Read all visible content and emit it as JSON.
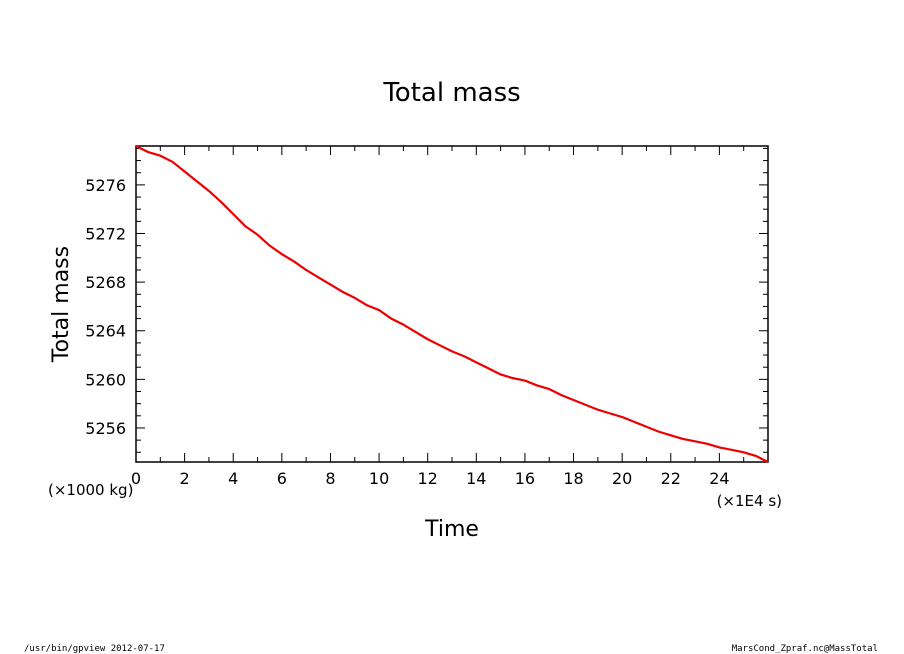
{
  "chart_data": {
    "type": "line",
    "title": "Total mass",
    "xlabel": "Time",
    "ylabel": "Total mass",
    "x_unit": "(×1E4 s)",
    "y_unit": "(×1000 kg)",
    "xlim": [
      0,
      26
    ],
    "ylim": [
      5253.2,
      5279.2
    ],
    "x_ticks": [
      0,
      2,
      4,
      6,
      8,
      10,
      12,
      14,
      16,
      18,
      20,
      22,
      24
    ],
    "y_ticks": [
      5256,
      5260,
      5264,
      5268,
      5272,
      5276
    ],
    "grid": false,
    "series": [
      {
        "color": "#ee0000",
        "x": [
          0,
          0.5,
          1,
          1.5,
          2,
          2.5,
          3,
          3.5,
          4,
          4.5,
          5,
          5.5,
          6,
          6.5,
          7,
          7.5,
          8,
          8.5,
          9,
          9.5,
          10,
          10.5,
          11,
          11.5,
          12,
          12.5,
          13,
          13.5,
          14,
          14.5,
          15,
          15.5,
          16,
          16.5,
          17,
          17.5,
          18,
          18.5,
          19,
          19.5,
          20,
          20.5,
          21,
          21.5,
          22,
          22.5,
          23,
          23.5,
          24,
          24.5,
          25,
          25.5,
          26
        ],
        "y": [
          5279.2,
          5278.7,
          5278.4,
          5277.9,
          5277.1,
          5276.3,
          5275.5,
          5274.6,
          5273.6,
          5272.6,
          5271.9,
          5271.0,
          5270.3,
          5269.7,
          5269.0,
          5268.4,
          5267.8,
          5267.2,
          5266.7,
          5266.1,
          5265.7,
          5265.0,
          5264.5,
          5263.9,
          5263.3,
          5262.8,
          5262.3,
          5261.9,
          5261.4,
          5260.9,
          5260.4,
          5260.1,
          5259.9,
          5259.5,
          5259.2,
          5258.7,
          5258.3,
          5257.9,
          5257.5,
          5257.2,
          5256.9,
          5256.5,
          5256.1,
          5255.7,
          5255.4,
          5255.1,
          5254.9,
          5254.7,
          5254.4,
          5254.2,
          5254.0,
          5253.7,
          5253.2
        ]
      }
    ]
  },
  "footer": {
    "left": "/usr/bin/gpview  2012-07-17",
    "right": "MarsCond_Zpraf.nc@MassTotal"
  }
}
